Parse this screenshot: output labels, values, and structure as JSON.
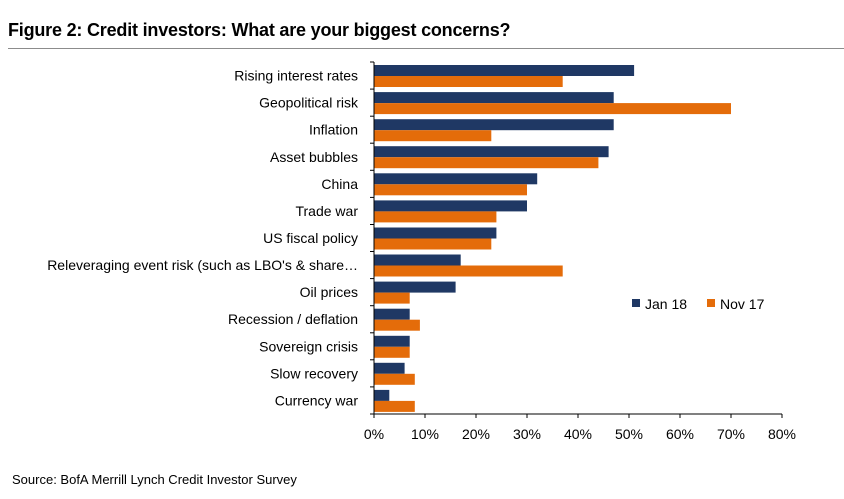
{
  "title": "Figure 2: Credit investors: What are your biggest concerns?",
  "source": "Source: BofA Merrill Lynch Credit Investor Survey",
  "colors": {
    "series_1": "#1f3864",
    "series_2": "#e46c0a",
    "axis": "#000000"
  },
  "chart_data": {
    "type": "bar",
    "orientation": "horizontal",
    "title": "Figure 2: Credit investors: What are your biggest concerns?",
    "categories": [
      "Rising interest rates",
      "Geopolitical risk",
      "Inflation",
      "Asset bubbles",
      "China",
      "Trade war",
      "US fiscal policy",
      "Releveraging event risk (such as LBO's & share…",
      "Oil prices",
      "Recession / deflation",
      "Sovereign crisis",
      "Slow recovery",
      "Currency war"
    ],
    "series": [
      {
        "name": "Jan 18",
        "values": [
          51,
          47,
          47,
          46,
          32,
          30,
          24,
          17,
          16,
          7,
          7,
          6,
          3
        ]
      },
      {
        "name": "Nov 17",
        "values": [
          37,
          70,
          23,
          44,
          30,
          24,
          23,
          37,
          7,
          9,
          7,
          8,
          8
        ]
      }
    ],
    "xlim": [
      0,
      80
    ],
    "xticks": [
      "0%",
      "10%",
      "20%",
      "30%",
      "40%",
      "50%",
      "60%",
      "70%",
      "80%"
    ],
    "xlabel": "",
    "ylabel": "",
    "legend_position": "right-center",
    "grid": false
  }
}
